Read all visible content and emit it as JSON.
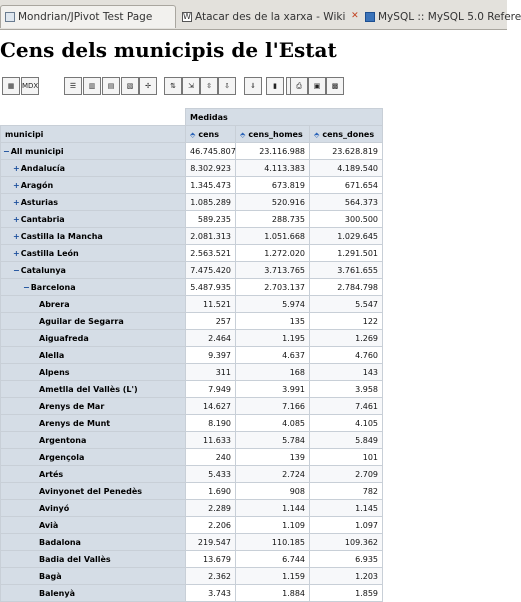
{
  "browser": {
    "tabs": [
      {
        "label": "Mondrian/JPivot Test Page",
        "icon": "page-icon"
      },
      {
        "label": "Atacar des de la xarxa - Wiki",
        "icon": "wiki-icon"
      },
      {
        "label": "MySQL :: MySQL 5.0 Refere",
        "icon": "mysql-icon"
      }
    ]
  },
  "page": {
    "title": "Cens dels municipis de l'Estat"
  },
  "toolbar": {
    "buttons": [
      {
        "name": "cube-navigator-button",
        "glyph": "▦"
      },
      {
        "name": "mdx-button",
        "glyph": "MDX"
      },
      {
        "name": "sort-config-button",
        "glyph": "☰"
      },
      {
        "name": "show-parents-button",
        "glyph": "▥"
      },
      {
        "name": "hide-spans-button",
        "glyph": "▤"
      },
      {
        "name": "show-properties-button",
        "glyph": "▧"
      },
      {
        "name": "suppress-empty-button",
        "glyph": "✢"
      },
      {
        "name": "swap-axes-button",
        "glyph": "⇅"
      },
      {
        "name": "drill-member-button",
        "glyph": "⇲"
      },
      {
        "name": "drill-position-button",
        "glyph": "⇳"
      },
      {
        "name": "drill-replace-button",
        "glyph": "⇩"
      },
      {
        "name": "drill-through-button",
        "glyph": "⇓"
      },
      {
        "name": "show-chart-button",
        "glyph": "▮"
      },
      {
        "name": "chart-config-button",
        "glyph": "▯"
      },
      {
        "name": "print-config-button",
        "glyph": "⎙"
      },
      {
        "name": "print-pdf-button",
        "glyph": "▣"
      },
      {
        "name": "export-excel-button",
        "glyph": "▩"
      }
    ]
  },
  "pivot": {
    "measures_header": "Medidas",
    "row_dimension_header": "municipi",
    "columns": [
      "cens",
      "cens_homes",
      "cens_dones"
    ],
    "rows": [
      {
        "label": "All municipi",
        "indent": 0,
        "expander": "−",
        "values": [
          "46.745.807",
          "23.116.988",
          "23.628.819"
        ]
      },
      {
        "label": "Andalucía",
        "indent": 1,
        "expander": "+",
        "values": [
          "8.302.923",
          "4.113.383",
          "4.189.540"
        ]
      },
      {
        "label": "Aragón",
        "indent": 1,
        "expander": "+",
        "values": [
          "1.345.473",
          "673.819",
          "671.654"
        ]
      },
      {
        "label": "Asturias",
        "indent": 1,
        "expander": "+",
        "values": [
          "1.085.289",
          "520.916",
          "564.373"
        ]
      },
      {
        "label": "Cantabria",
        "indent": 1,
        "expander": "+",
        "values": [
          "589.235",
          "288.735",
          "300.500"
        ]
      },
      {
        "label": "Castilla la Mancha",
        "indent": 1,
        "expander": "+",
        "values": [
          "2.081.313",
          "1.051.668",
          "1.029.645"
        ]
      },
      {
        "label": "Castilla León",
        "indent": 1,
        "expander": "+",
        "values": [
          "2.563.521",
          "1.272.020",
          "1.291.501"
        ]
      },
      {
        "label": "Catalunya",
        "indent": 1,
        "expander": "−",
        "values": [
          "7.475.420",
          "3.713.765",
          "3.761.655"
        ]
      },
      {
        "label": "Barcelona",
        "indent": 2,
        "expander": "−",
        "values": [
          "5.487.935",
          "2.703.137",
          "2.784.798"
        ]
      },
      {
        "label": "Abrera",
        "indent": 3,
        "expander": "",
        "values": [
          "11.521",
          "5.974",
          "5.547"
        ]
      },
      {
        "label": "Aguilar de Segarra",
        "indent": 3,
        "expander": "",
        "values": [
          "257",
          "135",
          "122"
        ]
      },
      {
        "label": "Aiguafreda",
        "indent": 3,
        "expander": "",
        "values": [
          "2.464",
          "1.195",
          "1.269"
        ]
      },
      {
        "label": "Alella",
        "indent": 3,
        "expander": "",
        "values": [
          "9.397",
          "4.637",
          "4.760"
        ]
      },
      {
        "label": "Alpens",
        "indent": 3,
        "expander": "",
        "values": [
          "311",
          "168",
          "143"
        ]
      },
      {
        "label": "Ametlla del Vallès (L')",
        "indent": 3,
        "expander": "",
        "values": [
          "7.949",
          "3.991",
          "3.958"
        ]
      },
      {
        "label": "Arenys de Mar",
        "indent": 3,
        "expander": "",
        "values": [
          "14.627",
          "7.166",
          "7.461"
        ]
      },
      {
        "label": "Arenys de Munt",
        "indent": 3,
        "expander": "",
        "values": [
          "8.190",
          "4.085",
          "4.105"
        ]
      },
      {
        "label": "Argentona",
        "indent": 3,
        "expander": "",
        "values": [
          "11.633",
          "5.784",
          "5.849"
        ]
      },
      {
        "label": "Argençola",
        "indent": 3,
        "expander": "",
        "values": [
          "240",
          "139",
          "101"
        ]
      },
      {
        "label": "Artés",
        "indent": 3,
        "expander": "",
        "values": [
          "5.433",
          "2.724",
          "2.709"
        ]
      },
      {
        "label": "Avinyonet del Penedès",
        "indent": 3,
        "expander": "",
        "values": [
          "1.690",
          "908",
          "782"
        ]
      },
      {
        "label": "Avinyó",
        "indent": 3,
        "expander": "",
        "values": [
          "2.289",
          "1.144",
          "1.145"
        ]
      },
      {
        "label": "Avià",
        "indent": 3,
        "expander": "",
        "values": [
          "2.206",
          "1.109",
          "1.097"
        ]
      },
      {
        "label": "Badalona",
        "indent": 3,
        "expander": "",
        "values": [
          "219.547",
          "110.185",
          "109.362"
        ]
      },
      {
        "label": "Badia del Vallès",
        "indent": 3,
        "expander": "",
        "values": [
          "13.679",
          "6.744",
          "6.935"
        ]
      },
      {
        "label": "Bagà",
        "indent": 3,
        "expander": "",
        "values": [
          "2.362",
          "1.159",
          "1.203"
        ]
      },
      {
        "label": "Balenyà",
        "indent": 3,
        "expander": "",
        "values": [
          "3.743",
          "1.884",
          "1.859"
        ]
      }
    ]
  },
  "colors": {
    "header_bg": "#d5dde6",
    "grid": "#c8cfd7",
    "sort_icon": "#2a63b8"
  }
}
